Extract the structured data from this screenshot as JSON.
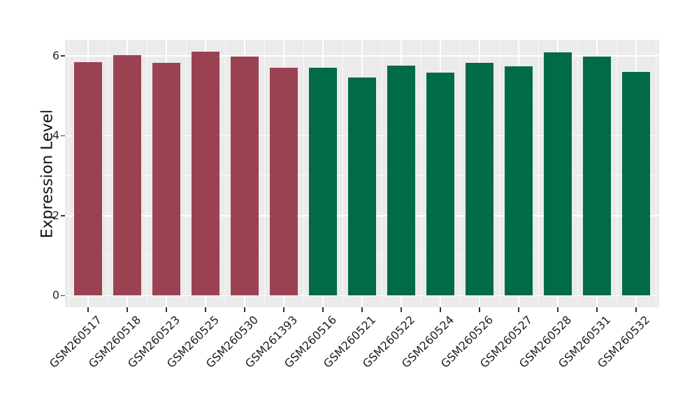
{
  "chart_data": {
    "type": "bar",
    "title": "",
    "xlabel": "",
    "ylabel": "Expression Level",
    "categories": [
      "GSM260517",
      "GSM260518",
      "GSM260523",
      "GSM260525",
      "GSM260530",
      "GSM261393",
      "GSM260516",
      "GSM260521",
      "GSM260522",
      "GSM260524",
      "GSM260526",
      "GSM260527",
      "GSM260528",
      "GSM260531",
      "GSM260532"
    ],
    "values": [
      5.84,
      6.01,
      5.82,
      6.1,
      5.98,
      5.7,
      5.7,
      5.46,
      5.75,
      5.58,
      5.82,
      5.74,
      6.08,
      5.98,
      5.59
    ],
    "groups": [
      "maroon",
      "maroon",
      "maroon",
      "maroon",
      "maroon",
      "maroon",
      "green",
      "green",
      "green",
      "green",
      "green",
      "green",
      "green",
      "green",
      "green"
    ],
    "group_colors": {
      "maroon": "#9B4252",
      "green": "#006A49"
    },
    "ytick_labels": [
      "0",
      "2",
      "4",
      "6"
    ],
    "ytick_values": [
      0,
      2,
      4,
      6
    ],
    "minor_tick_values": [
      1,
      3,
      5
    ],
    "ylim": [
      -0.29,
      6.4
    ],
    "legend_position": "none",
    "grid": "major-and-minor",
    "panel_bg": "#EBEBEB",
    "grid_color": "#FFFFFF",
    "figure_bg": "#FFFFFF"
  }
}
